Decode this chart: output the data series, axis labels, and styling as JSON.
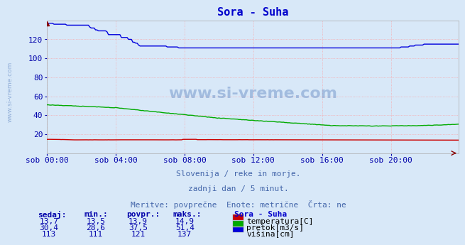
{
  "title": "Sora - Suha",
  "title_color": "#0000cc",
  "bg_color": "#d8e8f8",
  "plot_bg_color": "#d8e8f8",
  "grid_color": "#ff9999",
  "tick_color": "#0000aa",
  "yticks": [
    20,
    40,
    60,
    80,
    100,
    120
  ],
  "ylim": [
    0,
    140
  ],
  "xtick_labels": [
    "sob 00:00",
    "sob 04:00",
    "sob 08:00",
    "sob 12:00",
    "sob 16:00",
    "sob 20:00"
  ],
  "n_points": 288,
  "watermark_text": "www.si-vreme.com",
  "sidewatermark": "www.si-vreme.com",
  "subtitle1": "Slovenija / reke in morje.",
  "subtitle2": "zadnji dan / 5 minut.",
  "subtitle3": "Meritve: povprečne  Enote: metrične  Črta: ne",
  "subtitle_color": "#4466aa",
  "legend_title": "Sora - Suha",
  "legend_title_color": "#0000cc",
  "legend_items": [
    {
      "label": "temperatura[C]",
      "color": "#cc0000"
    },
    {
      "label": "pretok[m3/s]",
      "color": "#00aa00"
    },
    {
      "label": "višina[cm]",
      "color": "#0000dd"
    }
  ],
  "table_headers": [
    "sedaj:",
    "min.:",
    "povpr.:",
    "maks.:"
  ],
  "table_data": [
    [
      "13,7",
      "13,5",
      "13,9",
      "14,9"
    ],
    [
      "30,4",
      "28,6",
      "37,5",
      "51,4"
    ],
    [
      "113",
      "111",
      "121",
      "137"
    ]
  ],
  "table_color": "#0000aa",
  "temp_color": "#cc0000",
  "flow_color": "#00aa00",
  "height_color": "#0000dd"
}
